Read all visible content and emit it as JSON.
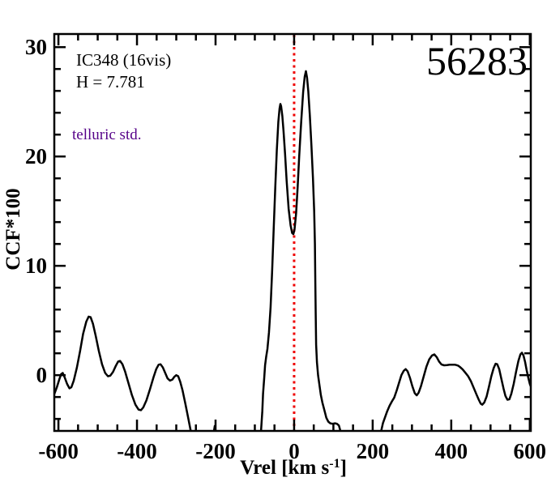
{
  "figure": {
    "background": "#ffffff"
  },
  "annotations": {
    "object": "IC348 (16vis)",
    "hmag": "H = 7.781",
    "note": "telluric std.",
    "note_color": "#550088",
    "epoch": "56283"
  },
  "chart_data": {
    "type": "line",
    "title": "",
    "ylabel": "CCF*100",
    "xlabel_main": "Vrel [km s",
    "xlabel_sup": "-1",
    "xlabel_close": "]",
    "xlim": [
      -610.5,
      602.5
    ],
    "ylim": [
      -5.1,
      31.2
    ],
    "x_major_ticks": [
      -600,
      -400,
      -200,
      0,
      200,
      400,
      600
    ],
    "x_minor_step": 50,
    "y_major_ticks": [
      0,
      10,
      20,
      30
    ],
    "y_minor_step": 2,
    "grid": false,
    "legend": "none",
    "frame_color": "#000000",
    "vline": {
      "x": 0,
      "color": "#ee0000",
      "style": "dotted"
    },
    "series": [
      {
        "name": "CCF",
        "color": "#000000",
        "points": [
          [
            -610,
            -1.7
          ],
          [
            -604,
            -1.1
          ],
          [
            -598,
            -0.4
          ],
          [
            -593,
            0.1
          ],
          [
            -589,
            0.2
          ],
          [
            -584,
            -0.2
          ],
          [
            -578,
            -0.8
          ],
          [
            -572,
            -1.2
          ],
          [
            -567,
            -1.1
          ],
          [
            -561,
            -0.5
          ],
          [
            -553,
            0.7
          ],
          [
            -545,
            2.2
          ],
          [
            -537,
            3.8
          ],
          [
            -529,
            4.9
          ],
          [
            -523,
            5.35
          ],
          [
            -518,
            5.3
          ],
          [
            -512,
            4.7
          ],
          [
            -505,
            3.6
          ],
          [
            -497,
            2.2
          ],
          [
            -489,
            1.0
          ],
          [
            -481,
            0.2
          ],
          [
            -474,
            -0.1
          ],
          [
            -468,
            -0.05
          ],
          [
            -461,
            0.3
          ],
          [
            -454,
            0.85
          ],
          [
            -448,
            1.25
          ],
          [
            -443,
            1.3
          ],
          [
            -437,
            1.0
          ],
          [
            -430,
            0.3
          ],
          [
            -422,
            -0.7
          ],
          [
            -413,
            -1.8
          ],
          [
            -404,
            -2.7
          ],
          [
            -396,
            -3.15
          ],
          [
            -390,
            -3.2
          ],
          [
            -384,
            -2.95
          ],
          [
            -376,
            -2.3
          ],
          [
            -367,
            -1.3
          ],
          [
            -358,
            -0.2
          ],
          [
            -351,
            0.55
          ],
          [
            -345,
            0.95
          ],
          [
            -340,
            1.0
          ],
          [
            -334,
            0.7
          ],
          [
            -328,
            0.2
          ],
          [
            -322,
            -0.3
          ],
          [
            -316,
            -0.5
          ],
          [
            -310,
            -0.4
          ],
          [
            -305,
            -0.15
          ],
          [
            -300,
            0.0
          ],
          [
            -295,
            -0.1
          ],
          [
            -290,
            -0.6
          ],
          [
            -284,
            -1.4
          ],
          [
            -277,
            -2.6
          ],
          [
            -269,
            -4.0
          ],
          [
            -261,
            -5.5
          ],
          [
            -255,
            -6.8
          ],
          [
            -209,
            -6.8
          ],
          [
            -205,
            -5.3
          ],
          [
            -202,
            -4.65
          ],
          [
            -199,
            -5.4
          ],
          [
            -196,
            -6.8
          ],
          [
            -97,
            -7.2
          ],
          [
            -92,
            -6.2
          ],
          [
            -88,
            -5.6
          ],
          [
            -84,
            -5.0
          ],
          [
            -81,
            -3.3
          ],
          [
            -79,
            -1.7
          ],
          [
            -76,
            -0.2
          ],
          [
            -74,
            0.9
          ],
          [
            -71,
            1.7
          ],
          [
            -68,
            2.4
          ],
          [
            -64,
            3.9
          ],
          [
            -60,
            6.2
          ],
          [
            -56,
            9.5
          ],
          [
            -52,
            13.3
          ],
          [
            -48,
            17.2
          ],
          [
            -44,
            20.6
          ],
          [
            -40,
            23.2
          ],
          [
            -37,
            24.4
          ],
          [
            -35,
            24.8
          ],
          [
            -33,
            24.6
          ],
          [
            -30,
            23.7
          ],
          [
            -27,
            22.3
          ],
          [
            -23,
            20.2
          ],
          [
            -19,
            17.8
          ],
          [
            -14,
            15.2
          ],
          [
            -9,
            13.7
          ],
          [
            -5,
            13.0
          ],
          [
            -2,
            12.9
          ],
          [
            1,
            13.3
          ],
          [
            5,
            14.8
          ],
          [
            9,
            17.2
          ],
          [
            13,
            20.0
          ],
          [
            18,
            23.2
          ],
          [
            23,
            25.9
          ],
          [
            27,
            27.3
          ],
          [
            30,
            27.8
          ],
          [
            33,
            27.2
          ],
          [
            36,
            26.0
          ],
          [
            40,
            23.8
          ],
          [
            44,
            21.0
          ],
          [
            48,
            18.0
          ],
          [
            51,
            15.0
          ],
          [
            53,
            12.0
          ],
          [
            54,
            8.5
          ],
          [
            55,
            5.5
          ],
          [
            56,
            2.8
          ],
          [
            58,
            1.2
          ],
          [
            61,
            0.0
          ],
          [
            64,
            -0.8
          ],
          [
            68,
            -1.8
          ],
          [
            72,
            -2.5
          ],
          [
            77,
            -3.2
          ],
          [
            82,
            -3.9
          ],
          [
            87,
            -4.25
          ],
          [
            92,
            -4.4
          ],
          [
            98,
            -4.45
          ],
          [
            104,
            -4.4
          ],
          [
            109,
            -4.45
          ],
          [
            114,
            -4.6
          ],
          [
            117,
            -5.0
          ],
          [
            120,
            -6.0
          ],
          [
            124,
            -7.0
          ],
          [
            217,
            -6.5
          ],
          [
            221,
            -5.2
          ],
          [
            226,
            -4.4
          ],
          [
            231,
            -3.9
          ],
          [
            237,
            -3.3
          ],
          [
            243,
            -2.8
          ],
          [
            249,
            -2.4
          ],
          [
            255,
            -2.05
          ],
          [
            261,
            -1.4
          ],
          [
            267,
            -0.7
          ],
          [
            273,
            0.0
          ],
          [
            279,
            0.4
          ],
          [
            284,
            0.55
          ],
          [
            289,
            0.35
          ],
          [
            295,
            -0.25
          ],
          [
            301,
            -1.0
          ],
          [
            307,
            -1.65
          ],
          [
            312,
            -1.85
          ],
          [
            317,
            -1.6
          ],
          [
            323,
            -1.0
          ],
          [
            330,
            -0.1
          ],
          [
            337,
            0.8
          ],
          [
            344,
            1.45
          ],
          [
            351,
            1.8
          ],
          [
            357,
            1.9
          ],
          [
            363,
            1.65
          ],
          [
            369,
            1.25
          ],
          [
            375,
            0.98
          ],
          [
            382,
            0.9
          ],
          [
            389,
            0.92
          ],
          [
            396,
            0.95
          ],
          [
            403,
            0.96
          ],
          [
            410,
            0.95
          ],
          [
            417,
            0.88
          ],
          [
            423,
            0.72
          ],
          [
            429,
            0.52
          ],
          [
            436,
            0.22
          ],
          [
            443,
            -0.1
          ],
          [
            450,
            -0.55
          ],
          [
            457,
            -1.15
          ],
          [
            464,
            -1.75
          ],
          [
            470,
            -2.25
          ],
          [
            475,
            -2.6
          ],
          [
            479,
            -2.7
          ],
          [
            484,
            -2.5
          ],
          [
            490,
            -1.95
          ],
          [
            496,
            -1.05
          ],
          [
            502,
            -0.1
          ],
          [
            508,
            0.65
          ],
          [
            513,
            1.05
          ],
          [
            517,
            1.0
          ],
          [
            522,
            0.55
          ],
          [
            527,
            -0.25
          ],
          [
            533,
            -1.2
          ],
          [
            538,
            -1.9
          ],
          [
            543,
            -2.25
          ],
          [
            548,
            -2.2
          ],
          [
            553,
            -1.7
          ],
          [
            559,
            -0.8
          ],
          [
            565,
            0.3
          ],
          [
            571,
            1.3
          ],
          [
            576,
            1.9
          ],
          [
            580,
            2.05
          ],
          [
            584,
            1.8
          ],
          [
            588,
            1.2
          ],
          [
            592,
            0.45
          ],
          [
            596,
            -0.2
          ],
          [
            600,
            -0.8
          ],
          [
            602,
            -1.0
          ]
        ]
      }
    ]
  }
}
